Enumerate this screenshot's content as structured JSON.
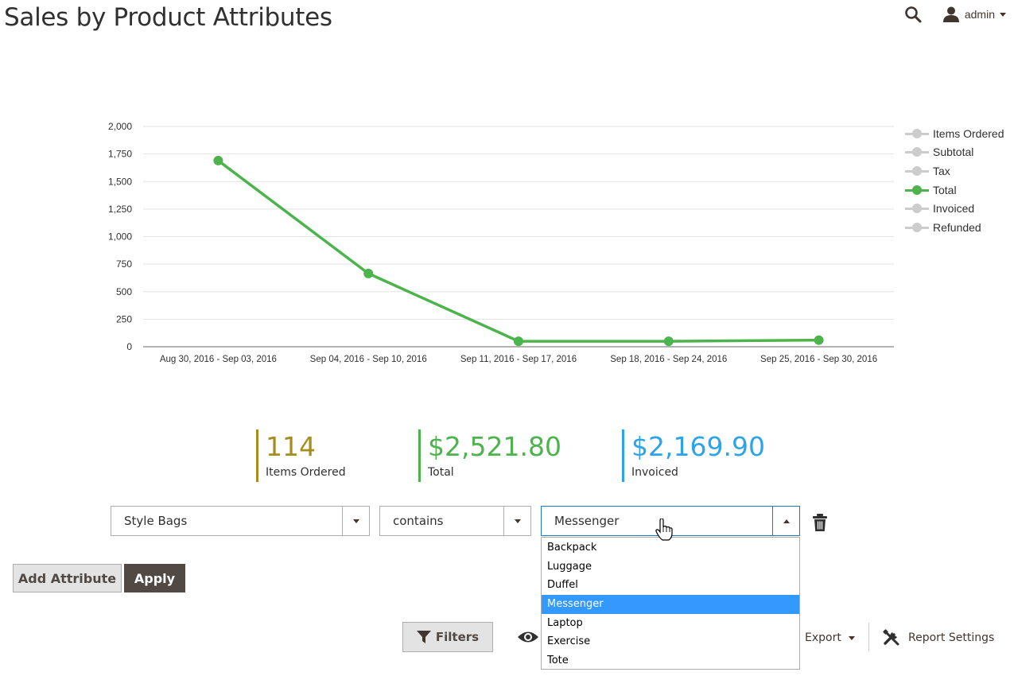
{
  "header": {
    "title": "Sales by Product Attributes",
    "search_icon": "search-icon",
    "user_icon": "user-icon",
    "user_name": "admin"
  },
  "chart_data": {
    "type": "line",
    "categories": [
      "Aug 30, 2016 - Sep 03, 2016",
      "Sep 04, 2016 - Sep 10, 2016",
      "Sep 11, 2016 - Sep 17, 2016",
      "Sep 18, 2016 - Sep 24, 2016",
      "Sep 25, 2016 - Sep 30, 2016"
    ],
    "yticks": [
      "2,000",
      "1,750",
      "1,500",
      "1,250",
      "1,000",
      "750",
      "500",
      "250",
      "0"
    ],
    "ylim": [
      0,
      2000
    ],
    "grid": true,
    "legend_position": "right",
    "legend": [
      "Items Ordered",
      "Subtotal",
      "Tax",
      "Total",
      "Invoiced",
      "Refunded"
    ],
    "active_series": "Total",
    "series": [
      {
        "name": "Total",
        "color": "#4db34d",
        "values": [
          1690,
          665,
          50,
          50,
          60
        ]
      }
    ]
  },
  "totals": [
    {
      "value": "114",
      "label": "Items Ordered",
      "color": "#a68d1d"
    },
    {
      "value": "$2,521.80",
      "label": "Total",
      "color": "#4db34d"
    },
    {
      "value": "$2,169.90",
      "label": "Invoiced",
      "color": "#2ca3eb"
    }
  ],
  "filter": {
    "attribute": "Style Bags",
    "operator": "contains",
    "value": "Messenger",
    "options": [
      "Backpack",
      "Luggage",
      "Duffel",
      "Messenger",
      "Laptop",
      "Exercise",
      "Tote"
    ],
    "selected_option": "Messenger"
  },
  "buttons": {
    "add_attribute": "Add Attribute",
    "apply": "Apply",
    "filters": "Filters",
    "export": "Export",
    "report_settings": "Report Settings"
  },
  "colors": {
    "accent_green": "#4db34d",
    "dropdown_highlight": "#3399ff",
    "primary_button": "#514943"
  }
}
